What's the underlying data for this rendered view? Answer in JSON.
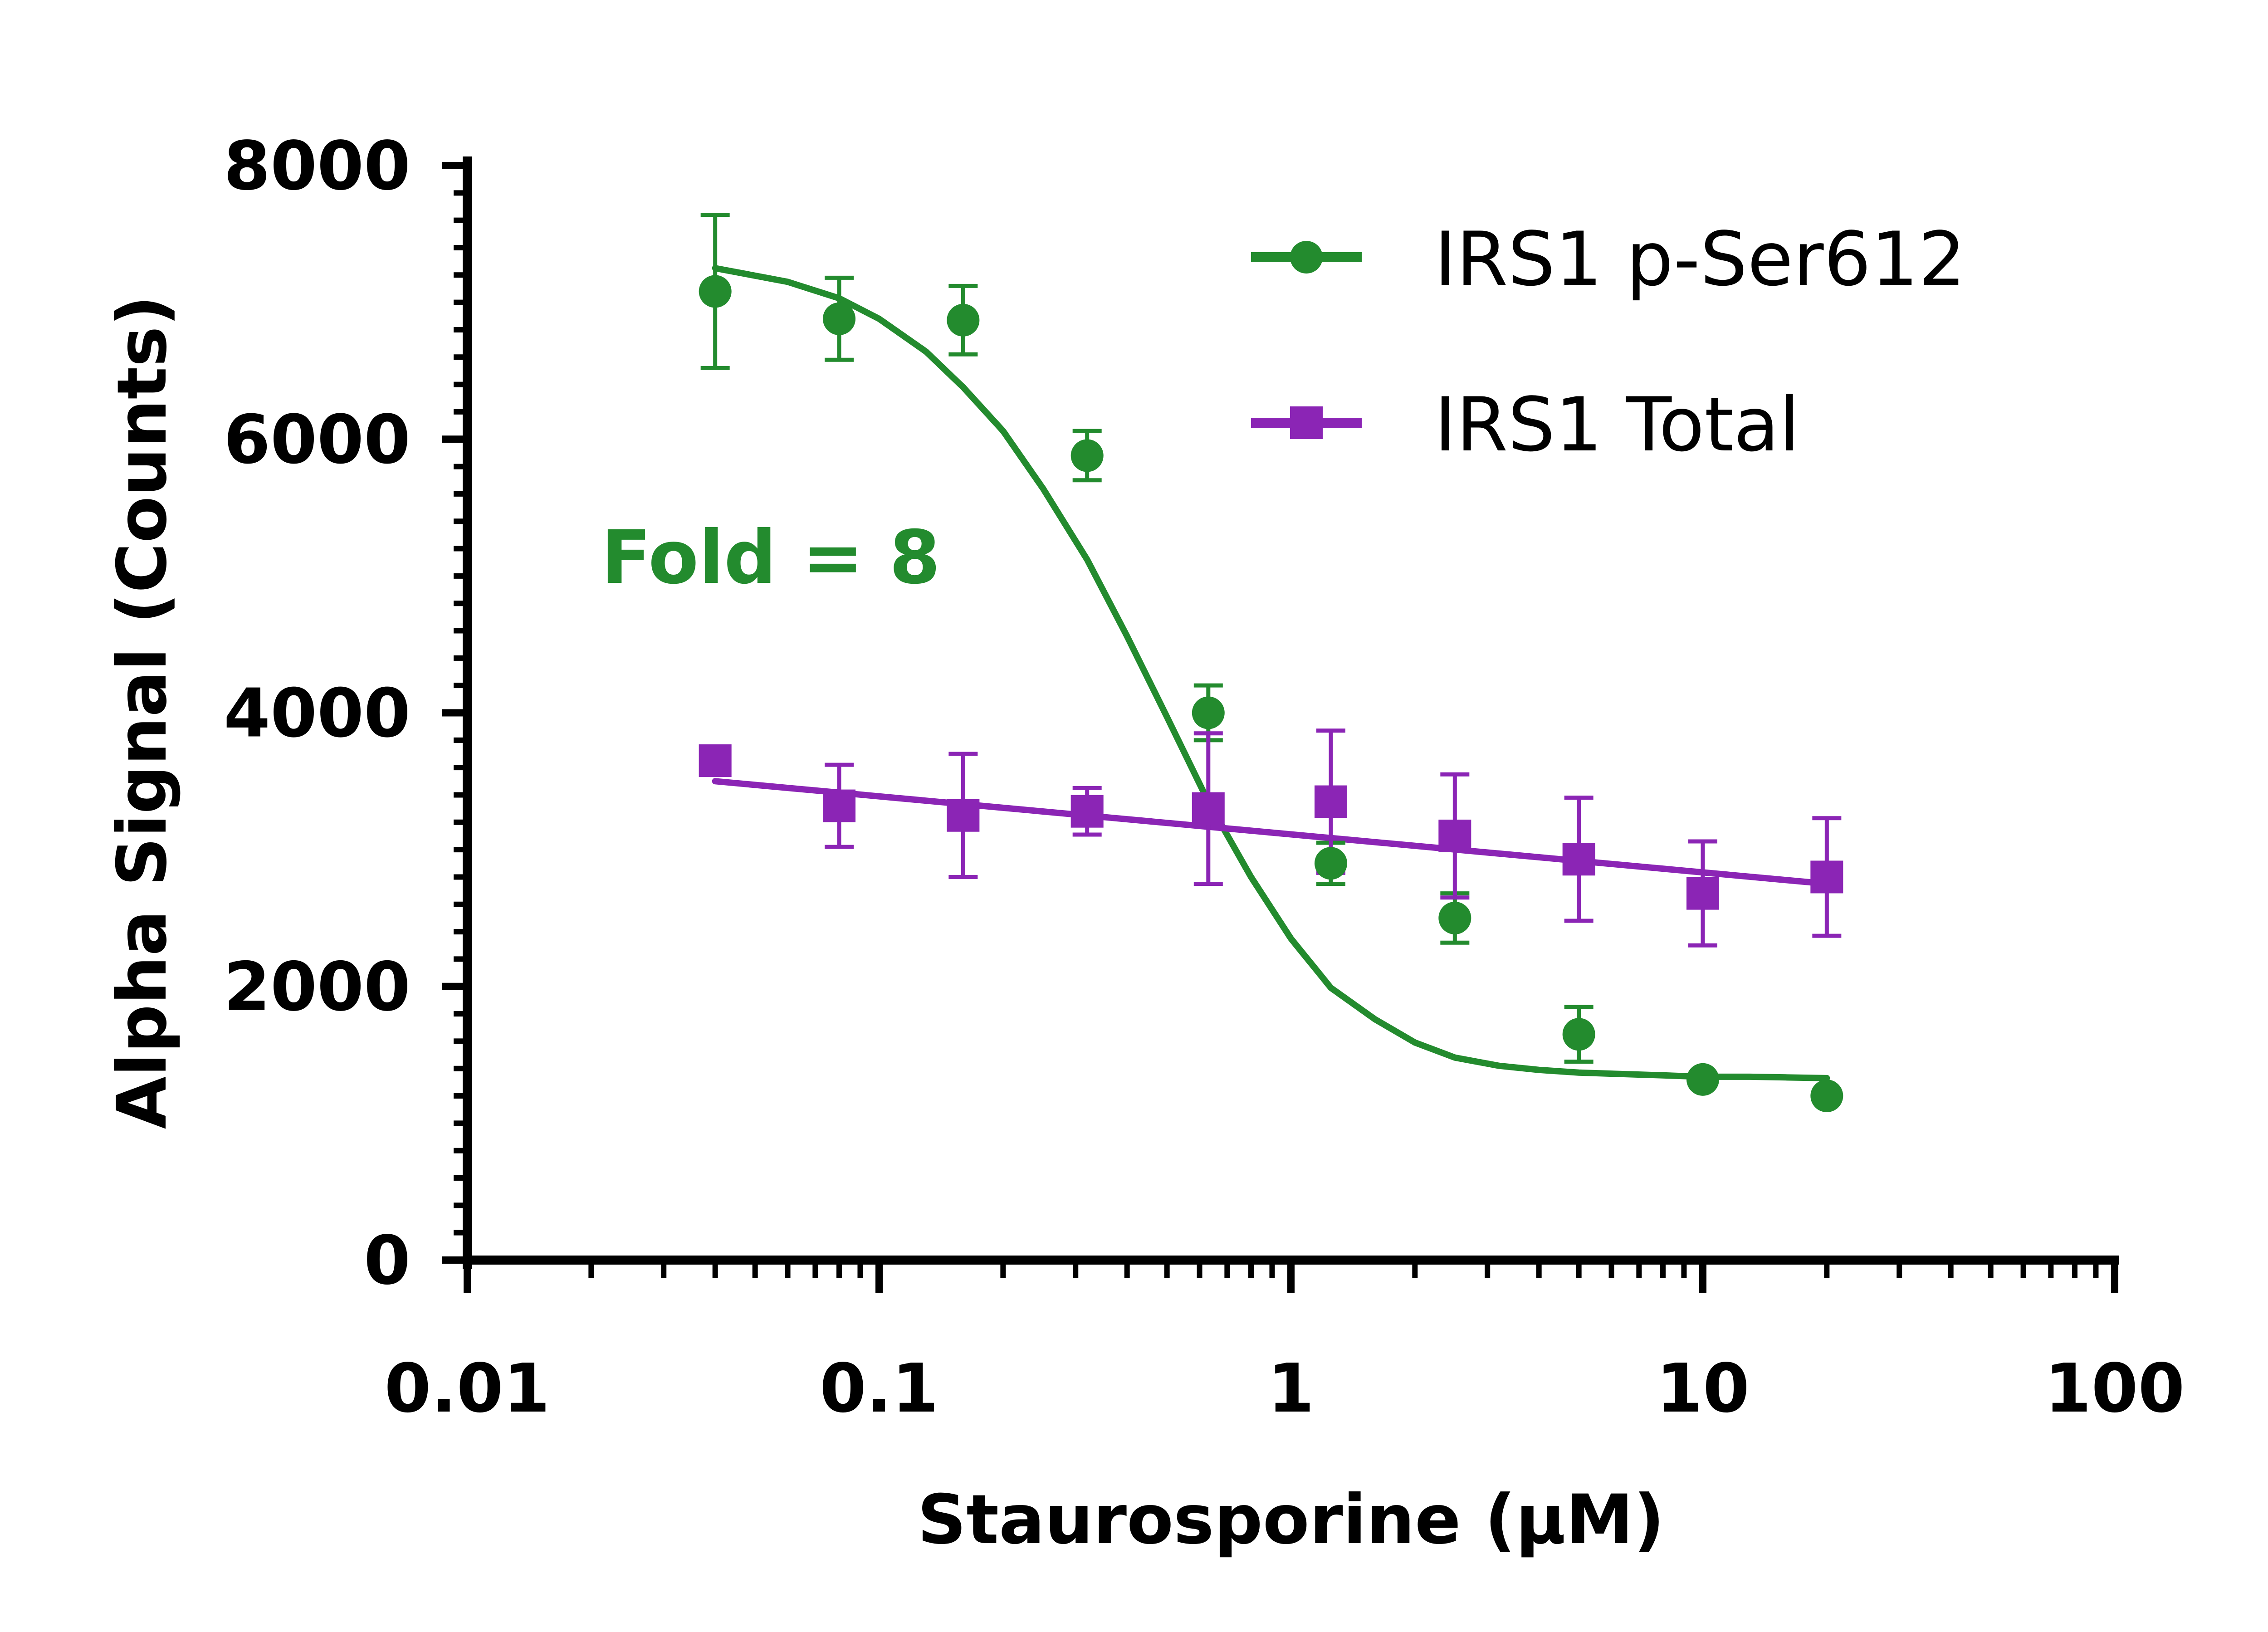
{
  "chart_data": {
    "type": "scatter",
    "xlabel": "Staurosporine (µM)",
    "ylabel": "Alpha Signal (Counts)",
    "x_scale": "log",
    "xlim": [
      0.01,
      100
    ],
    "ylim": [
      0,
      8000
    ],
    "x_ticks": [
      0.01,
      0.1,
      1,
      10,
      100
    ],
    "x_tick_labels": [
      "0.01",
      "0.1",
      "1",
      "10",
      "100"
    ],
    "y_ticks": [
      0,
      2000,
      4000,
      6000,
      8000
    ],
    "y_tick_labels": [
      "0",
      "2000",
      "4000",
      "6000",
      "8000"
    ],
    "grid": false,
    "legend_position": "top-right",
    "annotation": "Fold = 8",
    "series": [
      {
        "name": "IRS1 p-Ser612",
        "color": "#238b2e",
        "marker": "circle",
        "fit": "sigmoidal",
        "x": [
          0.04,
          0.08,
          0.16,
          0.32,
          0.63,
          1.25,
          2.5,
          5,
          10,
          20
        ],
        "y": [
          7080,
          6880,
          6870,
          5880,
          4000,
          2900,
          2500,
          1650,
          1320,
          1200
        ],
        "error": [
          560,
          300,
          250,
          180,
          200,
          150,
          180,
          200,
          0,
          0
        ],
        "fit_x": [
          0.04,
          0.06,
          0.08,
          0.1,
          0.13,
          0.16,
          0.2,
          0.25,
          0.32,
          0.4,
          0.5,
          0.63,
          0.8,
          1,
          1.25,
          1.6,
          2,
          2.5,
          3.2,
          4,
          5,
          6.3,
          8,
          10,
          13,
          16,
          20
        ],
        "fit_y": [
          7250,
          7150,
          7030,
          6880,
          6640,
          6380,
          6060,
          5640,
          5120,
          4560,
          3970,
          3350,
          2800,
          2350,
          1990,
          1760,
          1590,
          1480,
          1420,
          1390,
          1370,
          1360,
          1350,
          1340,
          1340,
          1335,
          1330
        ]
      },
      {
        "name": "IRS1 Total",
        "color": "#8b25b5",
        "marker": "square",
        "fit": "linear",
        "x": [
          0.04,
          0.08,
          0.16,
          0.32,
          0.63,
          1.25,
          2.5,
          5,
          10,
          20
        ],
        "y": [
          3650,
          3320,
          3250,
          3280,
          3300,
          3350,
          3100,
          2930,
          2680,
          2800
        ],
        "error": [
          0,
          300,
          450,
          170,
          550,
          520,
          450,
          450,
          380,
          430
        ],
        "fit_x": [
          0.04,
          20
        ],
        "fit_y": [
          3500,
          2750
        ]
      }
    ]
  }
}
